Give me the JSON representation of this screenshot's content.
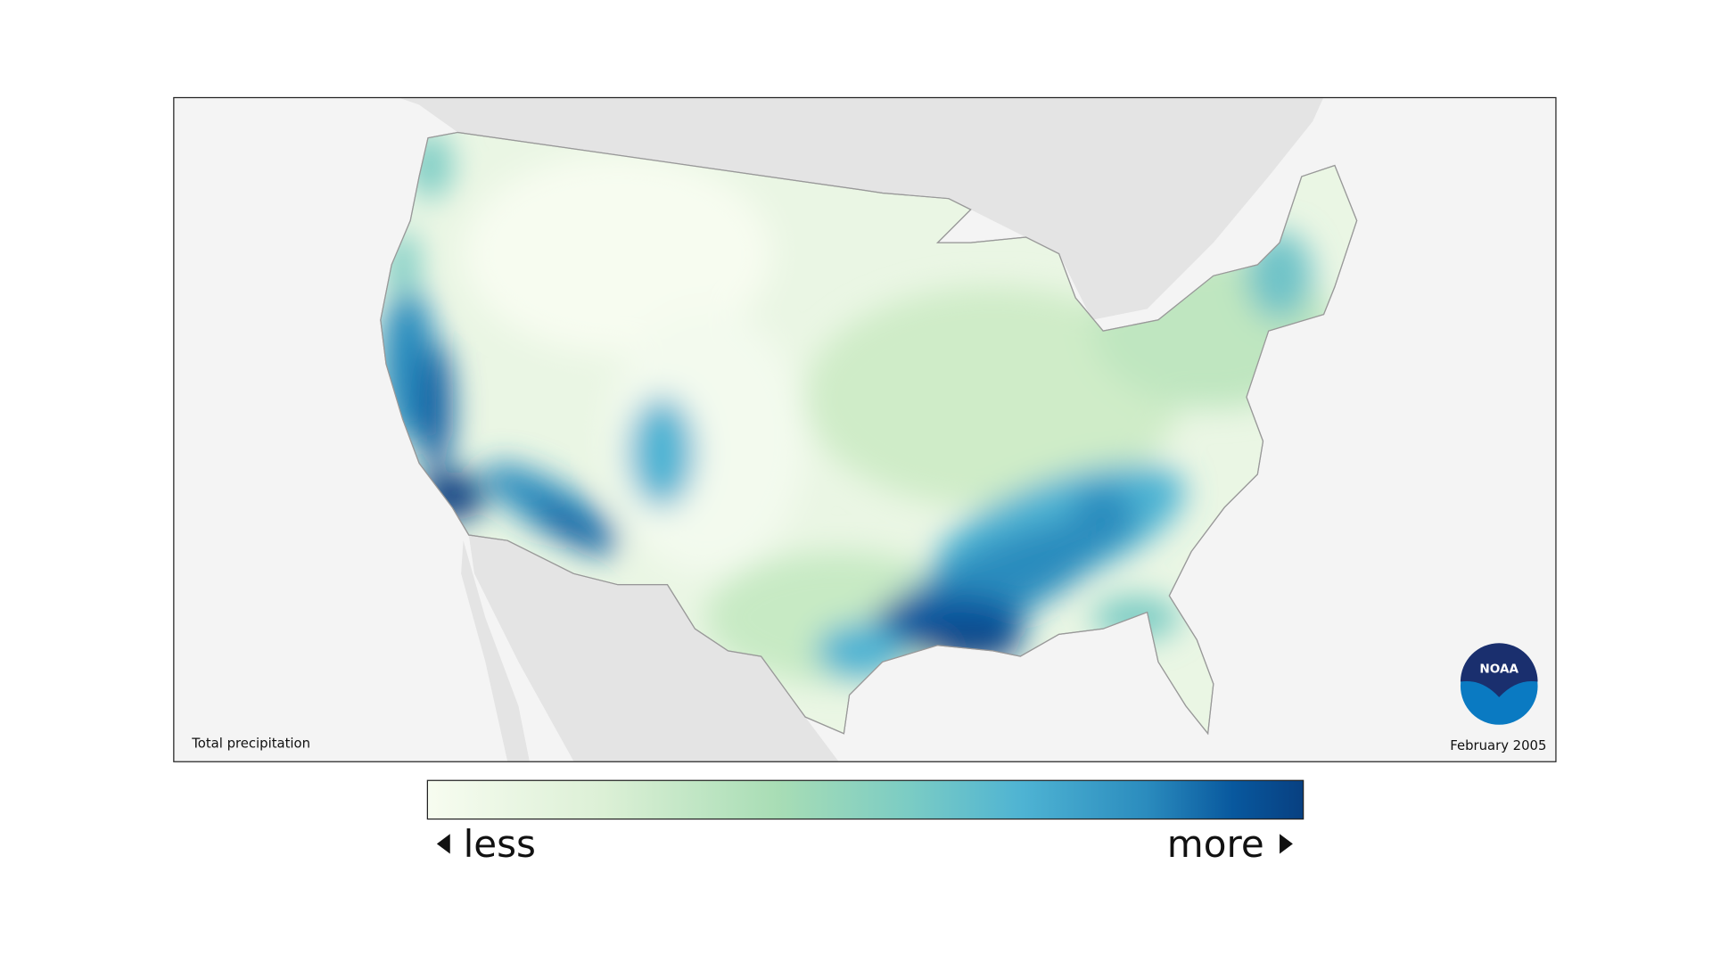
{
  "map": {
    "caption": "Total precipitation",
    "date": "February 2005",
    "logo": "NOAA"
  },
  "legend": {
    "low": "less",
    "high": "more"
  }
}
